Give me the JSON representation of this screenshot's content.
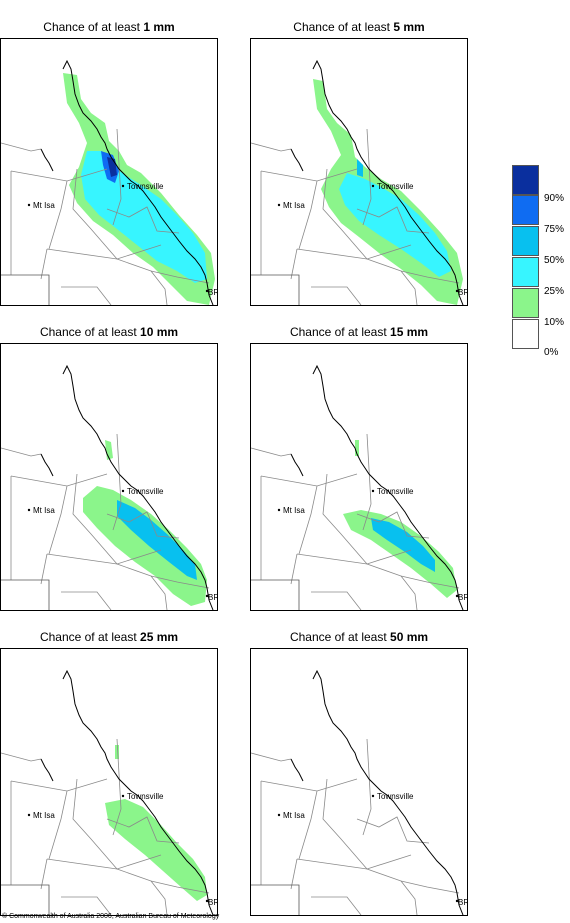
{
  "panels": [
    {
      "title_prefix": "Chance of at least",
      "amount": "1 mm"
    },
    {
      "title_prefix": "Chance of at least",
      "amount": "5 mm"
    },
    {
      "title_prefix": "Chance of at least",
      "amount": "10 mm"
    },
    {
      "title_prefix": "Chance of at least",
      "amount": "15 mm"
    },
    {
      "title_prefix": "Chance of at least",
      "amount": "25 mm"
    },
    {
      "title_prefix": "Chance of at least",
      "amount": "50 mm"
    }
  ],
  "places": {
    "townsville": "Townsville",
    "mt_isa": "Mt Isa",
    "brisbane": "BRIS"
  },
  "legend": {
    "labels": [
      "90%",
      "75%",
      "50%",
      "25%",
      "10%",
      "0%"
    ],
    "colors": [
      "#0a2f9e",
      "#0f6cf2",
      "#08c0ef",
      "#37f5ff",
      "#8bf58b",
      "#ffffff"
    ]
  },
  "copyright": "© Commonwealth of Australia 2006, Australian Bureau of Meteorology"
}
